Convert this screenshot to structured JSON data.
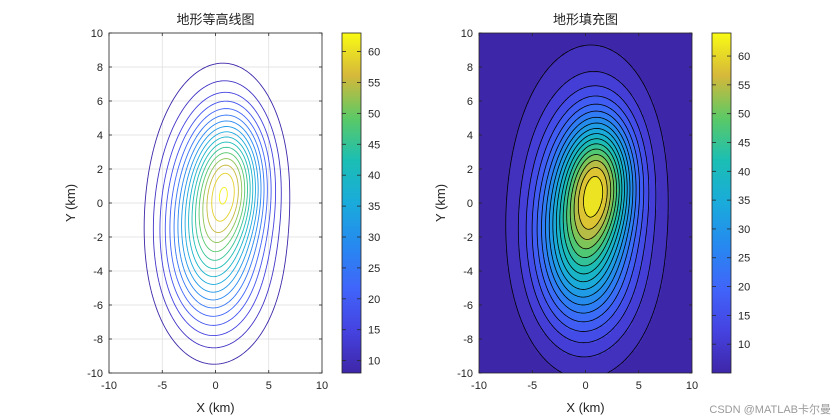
{
  "watermark": "CSDN @MATLAB卡尔曼",
  "chart_data": [
    {
      "type": "contour",
      "title": "地形等高线图",
      "xlabel": "X (km)",
      "ylabel": "Y (km)",
      "xlim": [
        -10,
        10
      ],
      "ylim": [
        -10,
        10
      ],
      "xticks": [
        -10,
        -5,
        0,
        5,
        10
      ],
      "yticks": [
        -10,
        -8,
        -6,
        -4,
        -2,
        0,
        2,
        4,
        6,
        8,
        10
      ],
      "grid": true,
      "colormap": "parula",
      "filled": false,
      "level_range": [
        8,
        62
      ],
      "level_count": 17,
      "peak": {
        "x": 1.5,
        "y": 1.5
      },
      "colorbar": {
        "ticks": [
          10,
          15,
          20,
          25,
          30,
          35,
          40,
          45,
          50,
          55,
          60
        ],
        "range": [
          8,
          63
        ]
      }
    },
    {
      "type": "contourf",
      "title": "地形填充图",
      "xlabel": "X (km)",
      "ylabel": "Y (km)",
      "xlim": [
        -10,
        10
      ],
      "ylim": [
        -10,
        10
      ],
      "xticks": [
        -10,
        -5,
        0,
        5,
        10
      ],
      "yticks": [
        -10,
        -8,
        -6,
        -4,
        -2,
        0,
        2,
        4,
        6,
        8,
        10
      ],
      "grid": false,
      "colormap": "parula",
      "filled": true,
      "level_range": [
        6,
        63
      ],
      "level_count": 18,
      "peak": {
        "x": 1.5,
        "y": 1.5
      },
      "colorbar": {
        "ticks": [
          10,
          15,
          20,
          25,
          30,
          35,
          40,
          45,
          50,
          55,
          60
        ],
        "range": [
          5,
          64
        ]
      }
    }
  ]
}
